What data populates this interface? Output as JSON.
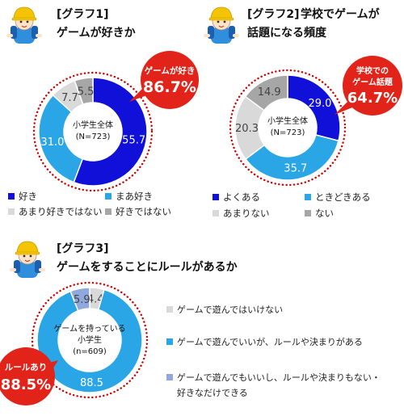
{
  "colors": {
    "navy": "#1010d8",
    "sky": "#2aa6e6",
    "light_gray": "#d9d9d9",
    "gray": "#a6a6a6",
    "lavender": "#8fa9dc",
    "badge_red": "#e2231a",
    "hole_border": "#d00000",
    "mascot_hat": "#f5c400",
    "mascot_body": "#2f8fdc"
  },
  "chart_data": [
    {
      "type": "pie",
      "title": "[グラフ1]",
      "subtitle": "ゲームが好きか",
      "center_label": [
        "小学生全体",
        "(N=723)"
      ],
      "badge": {
        "title": "ゲームが好き",
        "value": "86.7%"
      },
      "categories": [
        "好き",
        "まあ好き",
        "あまり好きではない",
        "好きではない"
      ],
      "values": [
        55.7,
        31.0,
        7.7,
        5.5
      ],
      "value_labels": [
        "55.7",
        "31.0",
        "7.7",
        "5.5"
      ],
      "colors": [
        "#1010d8",
        "#2aa6e6",
        "#d9d9d9",
        "#a6a6a6"
      ]
    },
    {
      "type": "pie",
      "title": "[グラフ2]",
      "subtitle_lines": [
        "学校でゲームが",
        "話題になる頻度"
      ],
      "center_label": [
        "小学生全体",
        "(N=723)"
      ],
      "badge": {
        "title_lines": [
          "学校での",
          "ゲーム話題"
        ],
        "value": "64.7%"
      },
      "categories": [
        "よくある",
        "ときどきある",
        "あまりない",
        "ない"
      ],
      "values": [
        29.0,
        35.7,
        20.3,
        14.9
      ],
      "value_labels": [
        "29.0",
        "35.7",
        "20.3",
        "14.9"
      ],
      "colors": [
        "#1010d8",
        "#2aa6e6",
        "#d9d9d9",
        "#a6a6a6"
      ]
    },
    {
      "type": "pie",
      "title": "[グラフ3]",
      "subtitle": "ゲームをすることにルールがあるか",
      "center_label": [
        "ゲームを持っている",
        "小学生",
        "(n=609)"
      ],
      "badge": {
        "title": "ルールあり",
        "value": "88.5%"
      },
      "categories": [
        "ゲームで遊んではいけない",
        "ゲームで遊んでいいが、ルールや決まりがある",
        "ゲームで遊んでもいいし、ルールや決まりもない・好きなだけできる"
      ],
      "legend_lines": [
        [
          "ゲームで遊んではいけない"
        ],
        [
          "ゲームで遊んでいいが、ルールや決まりがある"
        ],
        [
          "ゲームで遊んでもいいし、ルールや決まりもない・",
          "好きなだけできる"
        ]
      ],
      "values": [
        4.4,
        88.5,
        5.9
      ],
      "value_labels": [
        "4.4",
        "88.5",
        "5.9"
      ],
      "colors": [
        "#d9d9d9",
        "#2aa6e6",
        "#8fa9dc"
      ]
    }
  ]
}
